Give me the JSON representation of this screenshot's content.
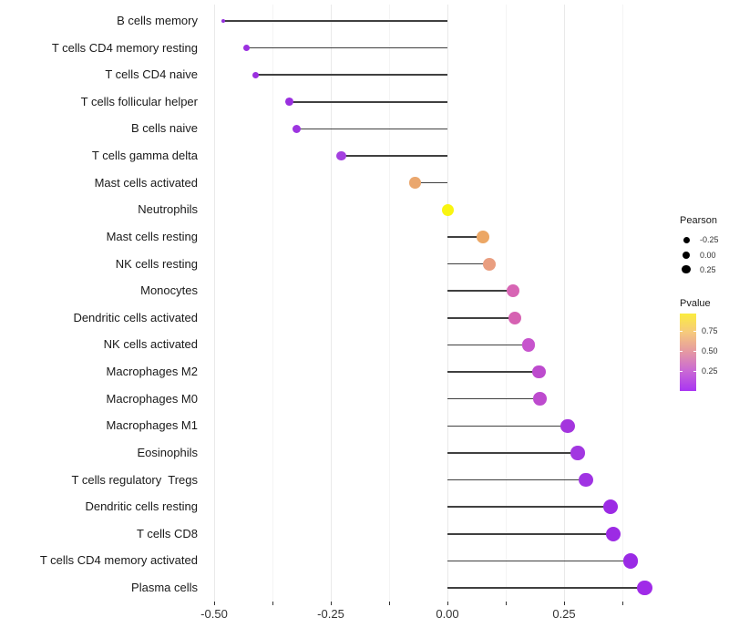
{
  "figure": {
    "background": "#ffffff",
    "stem_color": "#404040",
    "grid_major_color": "#e9e9e9",
    "grid_minor_color": "#f4f4f4",
    "legend_pearson": {
      "title": "Pearson",
      "items": [
        {
          "label": "-0.25",
          "value": -0.25
        },
        {
          "label": "0.00",
          "value": 0.0
        },
        {
          "label": "0.25",
          "value": 0.25
        }
      ]
    },
    "legend_pvalue": {
      "title": "Pvalue",
      "tick_labels": [
        "0.75",
        "0.50",
        "0.25"
      ],
      "gradient_stops": [
        "#FBEC3E",
        "#F6CA7C",
        "#E69BA0",
        "#CB6BD3",
        "#A935F2"
      ]
    }
  },
  "chart_data": {
    "type": "lollipop",
    "title": "",
    "xlabel": "",
    "ylabel": "",
    "x_axis": {
      "range": [
        -0.52,
        0.47
      ],
      "major_ticks": [
        -0.5,
        -0.25,
        0,
        0.25
      ],
      "major_tick_labels": [
        "-0.50",
        "-0.25",
        "0.00",
        "0.25"
      ],
      "minor_ticks": [
        -0.375,
        -0.125,
        0.125,
        0.375
      ]
    },
    "size_encoding": "Pearson correlation (dot size)",
    "color_encoding": "Pvalue (plasma gradient: yellow high, violet low)",
    "baseline": 0,
    "points": [
      {
        "label": "B cells memory",
        "pearson": -0.481,
        "pvalue_est": 0.06,
        "color": "#9430DC"
      },
      {
        "label": "T cells CD4 memory resting",
        "pearson": -0.43,
        "pvalue_est": 0.06,
        "color": "#9B30E0"
      },
      {
        "label": "T cells CD4 naive",
        "pearson": -0.411,
        "pvalue_est": 0.06,
        "color": "#9B30E0"
      },
      {
        "label": "T cells follicular helper",
        "pearson": -0.338,
        "pvalue_est": 0.05,
        "color": "#9A2FDF"
      },
      {
        "label": "B cells naive",
        "pearson": -0.324,
        "pvalue_est": 0.07,
        "color": "#9D35E0"
      },
      {
        "label": "T cells gamma delta",
        "pearson": -0.227,
        "pvalue_est": 0.1,
        "color": "#A440E0"
      },
      {
        "label": "Mast cells activated",
        "pearson": -0.069,
        "pvalue_est": 0.65,
        "color": "#EAA76E"
      },
      {
        "label": "Neutrophils",
        "pearson": 0.001,
        "pvalue_est": 0.97,
        "color": "#F9F511"
      },
      {
        "label": "Mast cells resting",
        "pearson": 0.076,
        "pvalue_est": 0.66,
        "color": "#ECA765"
      },
      {
        "label": "NK cells resting",
        "pearson": 0.09,
        "pvalue_est": 0.55,
        "color": "#E99E80"
      },
      {
        "label": "Monocytes",
        "pearson": 0.141,
        "pvalue_est": 0.3,
        "color": "#D765B4"
      },
      {
        "label": "Dendritic cells activated",
        "pearson": 0.145,
        "pvalue_est": 0.3,
        "color": "#D662B2"
      },
      {
        "label": "NK cells activated",
        "pearson": 0.174,
        "pvalue_est": 0.22,
        "color": "#C754CD"
      },
      {
        "label": "Macrophages M2",
        "pearson": 0.197,
        "pvalue_est": 0.17,
        "color": "#BD4BCE"
      },
      {
        "label": "Macrophages M0",
        "pearson": 0.199,
        "pvalue_est": 0.17,
        "color": "#BD4BCE"
      },
      {
        "label": "Macrophages M1",
        "pearson": 0.258,
        "pvalue_est": 0.09,
        "color": "#A435DE"
      },
      {
        "label": "Eosinophils",
        "pearson": 0.279,
        "pvalue_est": 0.08,
        "color": "#A237E1"
      },
      {
        "label": "T cells regulatory  Tregs",
        "pearson": 0.297,
        "pvalue_est": 0.08,
        "color": "#A033E3"
      },
      {
        "label": "Dendritic cells resting",
        "pearson": 0.35,
        "pvalue_est": 0.05,
        "color": "#9C2BE4"
      },
      {
        "label": "T cells CD8",
        "pearson": 0.356,
        "pvalue_est": 0.05,
        "color": "#9C2BE4"
      },
      {
        "label": "T cells CD4 memory activated",
        "pearson": 0.392,
        "pvalue_est": 0.03,
        "color": "#9A2AE5"
      },
      {
        "label": "Plasma cells",
        "pearson": 0.423,
        "pvalue_est": 0.03,
        "color": "#A02BE8"
      }
    ]
  }
}
